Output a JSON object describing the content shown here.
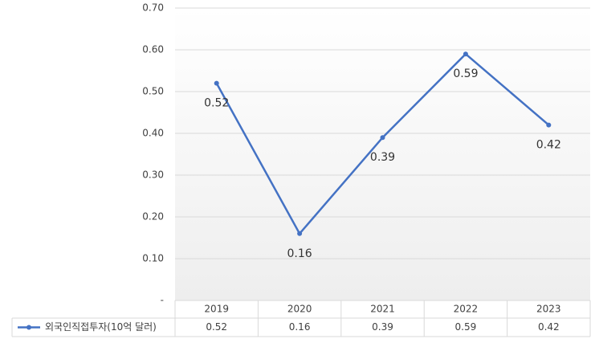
{
  "chart_data": {
    "type": "line",
    "categories": [
      "2019",
      "2020",
      "2021",
      "2022",
      "2023"
    ],
    "series": [
      {
        "name": "외국인직접투자(10억 달러)",
        "color": "#4472c4",
        "values": [
          0.52,
          0.16,
          0.39,
          0.59,
          0.42
        ]
      }
    ],
    "ylim": [
      0,
      0.7
    ],
    "yticks": [
      {
        "value": 0,
        "label": "-"
      },
      {
        "value": 0.1,
        "label": "0.10"
      },
      {
        "value": 0.2,
        "label": "0.20"
      },
      {
        "value": 0.3,
        "label": "0.30"
      },
      {
        "value": 0.4,
        "label": "0.40"
      },
      {
        "value": 0.5,
        "label": "0.50"
      },
      {
        "value": 0.6,
        "label": "0.60"
      },
      {
        "value": 0.7,
        "label": "0.70"
      }
    ],
    "grid": true
  }
}
